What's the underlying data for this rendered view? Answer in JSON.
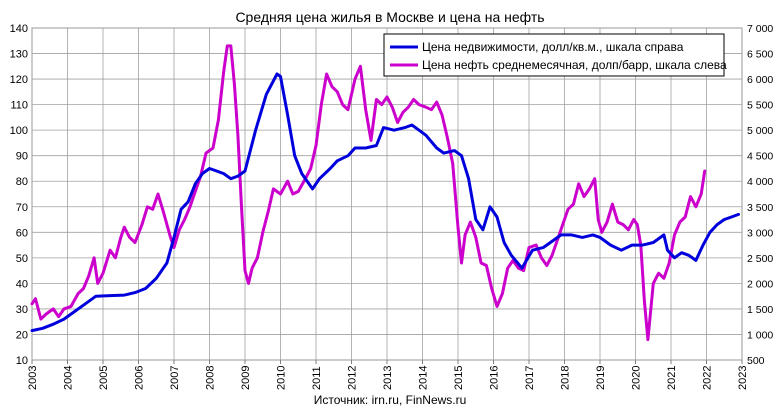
{
  "chart_data": {
    "type": "line",
    "title": "Средняя цена жилья в Москве и цена на нефть",
    "source": "Источник: irn.ru, FinNews.ru",
    "grid": true,
    "legend_position": "top-right",
    "x_axis": {
      "range": [
        2003,
        2023
      ],
      "tick_labels": [
        "2003",
        "2004",
        "2005",
        "2006",
        "2007",
        "2008",
        "2009",
        "2010",
        "2011",
        "2012",
        "2013",
        "2014",
        "2015",
        "2016",
        "2017",
        "2018",
        "2019",
        "2020",
        "2021",
        "2022",
        "2023"
      ]
    },
    "y_left": {
      "range": [
        10,
        140
      ],
      "tick_labels": [
        "10",
        "20",
        "30",
        "40",
        "50",
        "60",
        "70",
        "80",
        "90",
        "100",
        "110",
        "120",
        "130",
        "140"
      ]
    },
    "y_right": {
      "range": [
        500,
        7000
      ],
      "tick_labels": [
        "500",
        "1 000",
        "1 500",
        "2 000",
        "2 500",
        "3 000",
        "3 500",
        "4 000",
        "4 500",
        "5 000",
        "5 500",
        "6 000",
        "6 500",
        "7 000"
      ]
    },
    "series": [
      {
        "name": "Цена недвижимости, долл/кв.м., шкала справа",
        "axis": "right",
        "color": "#0000dd",
        "points": [
          [
            2003.0,
            1075
          ],
          [
            2003.3,
            1120
          ],
          [
            2003.6,
            1200
          ],
          [
            2003.9,
            1300
          ],
          [
            2004.2,
            1450
          ],
          [
            2004.5,
            1600
          ],
          [
            2004.8,
            1750
          ],
          [
            2005.2,
            1760
          ],
          [
            2005.6,
            1770
          ],
          [
            2005.9,
            1820
          ],
          [
            2006.2,
            1900
          ],
          [
            2006.5,
            2100
          ],
          [
            2006.8,
            2400
          ],
          [
            2007.0,
            2900
          ],
          [
            2007.2,
            3450
          ],
          [
            2007.4,
            3600
          ],
          [
            2007.6,
            3950
          ],
          [
            2007.8,
            4150
          ],
          [
            2008.0,
            4250
          ],
          [
            2008.2,
            4200
          ],
          [
            2008.4,
            4150
          ],
          [
            2008.6,
            4050
          ],
          [
            2008.8,
            4100
          ],
          [
            2009.0,
            4200
          ],
          [
            2009.3,
            5000
          ],
          [
            2009.6,
            5700
          ],
          [
            2009.9,
            6100
          ],
          [
            2010.0,
            6050
          ],
          [
            2010.2,
            5300
          ],
          [
            2010.4,
            4500
          ],
          [
            2010.6,
            4150
          ],
          [
            2010.9,
            3850
          ],
          [
            2011.1,
            4050
          ],
          [
            2011.4,
            4250
          ],
          [
            2011.6,
            4400
          ],
          [
            2011.9,
            4500
          ],
          [
            2012.1,
            4650
          ],
          [
            2012.4,
            4650
          ],
          [
            2012.7,
            4700
          ],
          [
            2012.9,
            5050
          ],
          [
            2013.2,
            5000
          ],
          [
            2013.5,
            5050
          ],
          [
            2013.7,
            5100
          ],
          [
            2013.9,
            5000
          ],
          [
            2014.1,
            4900
          ],
          [
            2014.4,
            4650
          ],
          [
            2014.6,
            4550
          ],
          [
            2014.9,
            4600
          ],
          [
            2015.1,
            4500
          ],
          [
            2015.3,
            4050
          ],
          [
            2015.5,
            3250
          ],
          [
            2015.7,
            3050
          ],
          [
            2015.9,
            3500
          ],
          [
            2016.1,
            3300
          ],
          [
            2016.3,
            2800
          ],
          [
            2016.5,
            2550
          ],
          [
            2016.8,
            2300
          ],
          [
            2017.1,
            2650
          ],
          [
            2017.4,
            2700
          ],
          [
            2017.7,
            2850
          ],
          [
            2017.9,
            2950
          ],
          [
            2018.2,
            2950
          ],
          [
            2018.5,
            2900
          ],
          [
            2018.8,
            2950
          ],
          [
            2019.0,
            2900
          ],
          [
            2019.3,
            2750
          ],
          [
            2019.6,
            2650
          ],
          [
            2019.9,
            2750
          ],
          [
            2020.2,
            2750
          ],
          [
            2020.5,
            2800
          ],
          [
            2020.8,
            2950
          ],
          [
            2020.9,
            2650
          ],
          [
            2021.1,
            2500
          ],
          [
            2021.3,
            2600
          ],
          [
            2021.5,
            2550
          ],
          [
            2021.7,
            2450
          ],
          [
            2021.9,
            2750
          ],
          [
            2022.1,
            3000
          ],
          [
            2022.3,
            3150
          ],
          [
            2022.5,
            3250
          ],
          [
            2022.7,
            3300
          ],
          [
            2022.9,
            3350
          ]
        ]
      },
      {
        "name": "Цена нефть среднемесячная, долп/барр, шкала слева",
        "axis": "left",
        "color": "#cc00cc",
        "points": [
          [
            2003.0,
            32
          ],
          [
            2003.1,
            34
          ],
          [
            2003.25,
            26
          ],
          [
            2003.4,
            28
          ],
          [
            2003.6,
            30
          ],
          [
            2003.75,
            27
          ],
          [
            2003.9,
            30
          ],
          [
            2004.1,
            31
          ],
          [
            2004.3,
            36
          ],
          [
            2004.45,
            38
          ],
          [
            2004.6,
            43
          ],
          [
            2004.75,
            50
          ],
          [
            2004.85,
            40
          ],
          [
            2005.0,
            44
          ],
          [
            2005.2,
            53
          ],
          [
            2005.35,
            50
          ],
          [
            2005.5,
            58
          ],
          [
            2005.6,
            62
          ],
          [
            2005.75,
            58
          ],
          [
            2005.9,
            56
          ],
          [
            2006.1,
            63
          ],
          [
            2006.25,
            70
          ],
          [
            2006.4,
            69
          ],
          [
            2006.55,
            75
          ],
          [
            2006.7,
            68
          ],
          [
            2006.9,
            58
          ],
          [
            2007.0,
            54
          ],
          [
            2007.15,
            61
          ],
          [
            2007.3,
            65
          ],
          [
            2007.45,
            70
          ],
          [
            2007.6,
            76
          ],
          [
            2007.75,
            82
          ],
          [
            2007.9,
            91
          ],
          [
            2008.1,
            93
          ],
          [
            2008.25,
            104
          ],
          [
            2008.4,
            123
          ],
          [
            2008.5,
            133
          ],
          [
            2008.6,
            133
          ],
          [
            2008.7,
            118
          ],
          [
            2008.8,
            98
          ],
          [
            2008.9,
            70
          ],
          [
            2009.0,
            45
          ],
          [
            2009.1,
            40
          ],
          [
            2009.2,
            46
          ],
          [
            2009.35,
            50
          ],
          [
            2009.5,
            60
          ],
          [
            2009.65,
            68
          ],
          [
            2009.8,
            77
          ],
          [
            2010.0,
            75
          ],
          [
            2010.2,
            80
          ],
          [
            2010.35,
            75
          ],
          [
            2010.5,
            76
          ],
          [
            2010.7,
            81
          ],
          [
            2010.85,
            85
          ],
          [
            2011.0,
            94
          ],
          [
            2011.15,
            110
          ],
          [
            2011.3,
            122
          ],
          [
            2011.45,
            117
          ],
          [
            2011.6,
            115
          ],
          [
            2011.75,
            110
          ],
          [
            2011.9,
            108
          ],
          [
            2012.1,
            120
          ],
          [
            2012.25,
            125
          ],
          [
            2012.4,
            108
          ],
          [
            2012.55,
            96
          ],
          [
            2012.7,
            112
          ],
          [
            2012.85,
            110
          ],
          [
            2013.0,
            113
          ],
          [
            2013.15,
            109
          ],
          [
            2013.3,
            103
          ],
          [
            2013.45,
            107
          ],
          [
            2013.6,
            109
          ],
          [
            2013.75,
            112
          ],
          [
            2013.9,
            110
          ],
          [
            2014.1,
            109
          ],
          [
            2014.25,
            108
          ],
          [
            2014.4,
            111
          ],
          [
            2014.55,
            106
          ],
          [
            2014.7,
            97
          ],
          [
            2014.85,
            87
          ],
          [
            2015.0,
            62
          ],
          [
            2015.1,
            48
          ],
          [
            2015.2,
            59
          ],
          [
            2015.35,
            64
          ],
          [
            2015.5,
            58
          ],
          [
            2015.65,
            48
          ],
          [
            2015.8,
            47
          ],
          [
            2015.95,
            38
          ],
          [
            2016.1,
            31
          ],
          [
            2016.25,
            36
          ],
          [
            2016.4,
            46
          ],
          [
            2016.55,
            49
          ],
          [
            2016.7,
            46
          ],
          [
            2016.85,
            45
          ],
          [
            2017.0,
            54
          ],
          [
            2017.2,
            55
          ],
          [
            2017.35,
            50
          ],
          [
            2017.5,
            47
          ],
          [
            2017.65,
            51
          ],
          [
            2017.8,
            57
          ],
          [
            2017.95,
            63
          ],
          [
            2018.1,
            69
          ],
          [
            2018.25,
            71
          ],
          [
            2018.4,
            79
          ],
          [
            2018.55,
            74
          ],
          [
            2018.7,
            77
          ],
          [
            2018.85,
            81
          ],
          [
            2018.95,
            65
          ],
          [
            2019.05,
            60
          ],
          [
            2019.2,
            64
          ],
          [
            2019.35,
            71
          ],
          [
            2019.5,
            64
          ],
          [
            2019.65,
            63
          ],
          [
            2019.8,
            61
          ],
          [
            2019.95,
            65
          ],
          [
            2020.05,
            63
          ],
          [
            2020.15,
            55
          ],
          [
            2020.25,
            33
          ],
          [
            2020.35,
            18
          ],
          [
            2020.5,
            40
          ],
          [
            2020.65,
            44
          ],
          [
            2020.8,
            42
          ],
          [
            2020.95,
            48
          ],
          [
            2021.1,
            59
          ],
          [
            2021.25,
            64
          ],
          [
            2021.4,
            66
          ],
          [
            2021.55,
            74
          ],
          [
            2021.7,
            70
          ],
          [
            2021.85,
            75
          ],
          [
            2021.95,
            84
          ]
        ]
      }
    ]
  }
}
